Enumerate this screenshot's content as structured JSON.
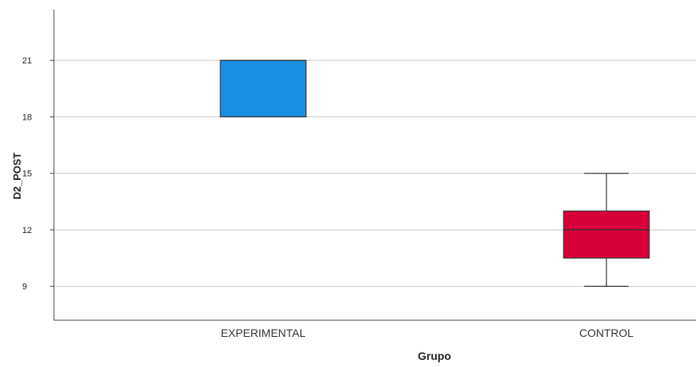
{
  "chart_data": {
    "type": "boxplot",
    "xlabel": "Grupo",
    "ylabel": "D2_POST",
    "ylim": [
      7.2,
      23.7
    ],
    "yticks": [
      9,
      12,
      15,
      18,
      21
    ],
    "grid": true,
    "categories": [
      "EXPERIMENTAL",
      "CONTROL"
    ],
    "boxes": [
      {
        "category": "EXPERIMENTAL",
        "whisker_low": 18,
        "q1": 18,
        "median": 21,
        "q3": 21,
        "whisker_high": 21,
        "color": "#1a8fe3"
      },
      {
        "category": "CONTROL",
        "whisker_low": 9,
        "q1": 10.5,
        "median": 12,
        "q3": 13,
        "whisker_high": 15,
        "color": "#d9003a"
      }
    ]
  }
}
